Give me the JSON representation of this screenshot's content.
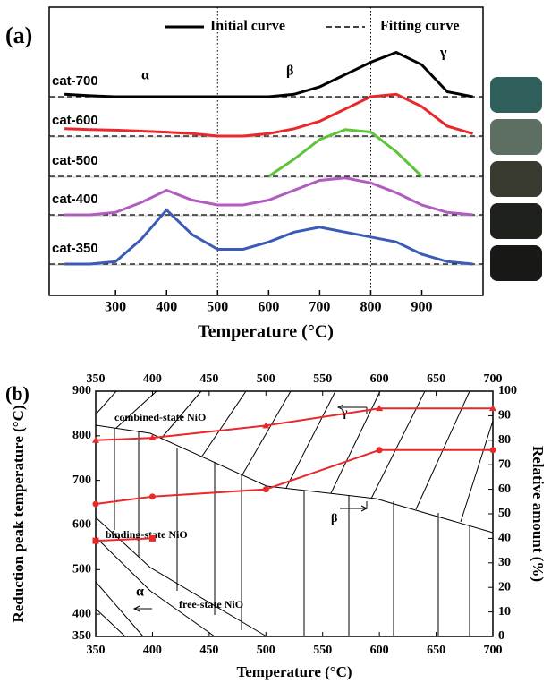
{
  "chart_data": [
    {
      "type": "line",
      "panel_label": "(a)",
      "legend_labels": [
        "Initial curve",
        "Fitting curve"
      ],
      "annotations": [
        "α",
        "β",
        "γ"
      ],
      "x_label": "Temperature (°C)",
      "xlim": [
        170,
        1020
      ],
      "xticks": [
        300,
        400,
        500,
        600,
        700,
        800,
        900
      ],
      "reference_lines": [
        500,
        800
      ],
      "x": [
        200,
        250,
        300,
        350,
        400,
        450,
        500,
        550,
        600,
        650,
        700,
        750,
        800,
        850,
        900,
        950,
        1000
      ],
      "series": [
        {
          "name": "cat-700",
          "color": "#000000",
          "values": [
            0.05,
            0.02,
            0,
            0,
            0,
            0,
            0,
            0,
            0,
            0.05,
            0.2,
            0.45,
            0.7,
            0.9,
            0.65,
            0.1,
            0
          ]
        },
        {
          "name": "cat-600",
          "color": "#e8282a",
          "values": [
            0.15,
            0.13,
            0.12,
            0.1,
            0.08,
            0.05,
            0,
            0,
            0.05,
            0.15,
            0.3,
            0.55,
            0.8,
            0.85,
            0.6,
            0.2,
            0.05
          ]
        },
        {
          "name": "cat-500",
          "color": "#5ec43a",
          "values": [
            null,
            null,
            null,
            null,
            null,
            null,
            null,
            null,
            0,
            0.35,
            0.75,
            0.95,
            0.9,
            0.5,
            0,
            null,
            null
          ]
        },
        {
          "name": "cat-400",
          "color": "#b05cc0",
          "values": [
            0,
            0,
            0.05,
            0.25,
            0.5,
            0.3,
            0.2,
            0.2,
            0.3,
            0.5,
            0.7,
            0.75,
            0.65,
            0.45,
            0.2,
            0.05,
            0
          ]
        },
        {
          "name": "cat-350",
          "color": "#3a5bb8",
          "values": [
            0,
            0,
            0.05,
            0.5,
            1.1,
            0.6,
            0.3,
            0.3,
            0.45,
            0.65,
            0.75,
            0.65,
            0.55,
            0.45,
            0.2,
            0.05,
            0
          ]
        }
      ]
    },
    {
      "type": "line",
      "panel_label": "(b)",
      "x_label": "Temperature (°C)",
      "y_label": "Reduction peak temperature (°C)",
      "y2_label": "Relative amount (%)",
      "region_labels": [
        "combined-state NiO",
        "binding-state NiO",
        "free-state NiO"
      ],
      "annotations": [
        "γ",
        "β",
        "α"
      ],
      "xlim": [
        350,
        700
      ],
      "xticks": [
        350,
        400,
        450,
        500,
        550,
        600,
        650,
        700
      ],
      "ylim": [
        350,
        900
      ],
      "yticks": [
        350,
        400,
        500,
        600,
        700,
        800,
        900
      ],
      "y2lim": [
        0,
        100
      ],
      "y2ticks": [
        0,
        10,
        20,
        30,
        40,
        50,
        60,
        70,
        80,
        90,
        100
      ],
      "x": [
        350,
        400,
        500,
        600,
        700
      ],
      "series": [
        {
          "name": "γ",
          "color": "#e8282a",
          "axis": "y2",
          "marker": "triangle",
          "values": [
            80,
            81,
            86,
            93,
            93
          ]
        },
        {
          "name": "β",
          "color": "#e8282a",
          "axis": "y2",
          "marker": "circle",
          "values": [
            54,
            57,
            60,
            76,
            76
          ]
        },
        {
          "name": "α",
          "color": "#e8282a",
          "axis": "y2",
          "marker": "square",
          "values": [
            39,
            40,
            null,
            null,
            null
          ]
        }
      ]
    }
  ]
}
